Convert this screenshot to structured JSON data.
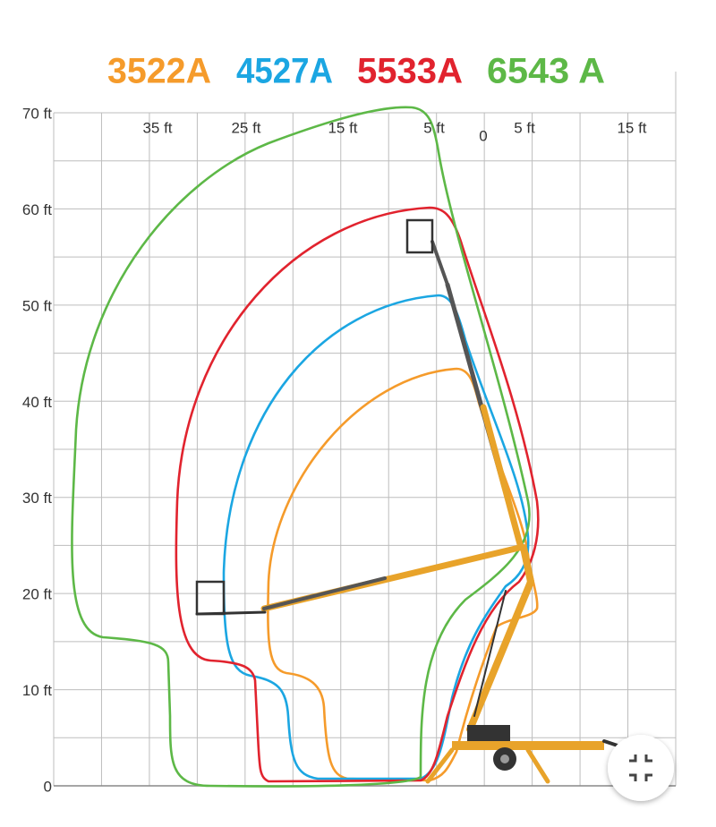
{
  "legend": [
    {
      "label": "3522A",
      "color": "#f59b2b"
    },
    {
      "label": "4527A",
      "color": "#1ba6e2"
    },
    {
      "label": "5533A",
      "color": "#e1232e"
    },
    {
      "label": "6543 A",
      "color": "#5db847"
    }
  ],
  "y_axis": {
    "labels": [
      "70 ft",
      "60 ft",
      "50 ft",
      "40 ft",
      "30 ft",
      "20 ft",
      "10 ft",
      "0"
    ]
  },
  "x_axis": {
    "labels": [
      "35 ft",
      "25 ft",
      "15 ft",
      "5 ft",
      "0",
      "5 ft",
      "15 ft"
    ]
  }
}
